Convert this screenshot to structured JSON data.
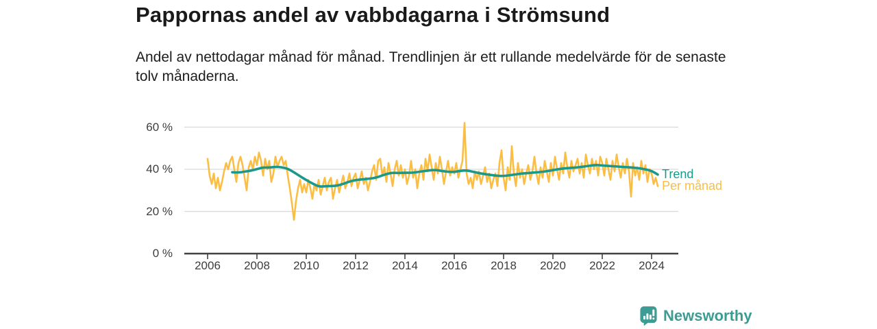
{
  "header": {
    "title": "Pappornas andel av vabbdagarna i Strömsund",
    "subtitle": "Andel av nettodagar månad för månad. Trendlinjen är ett rullande medelvärde för de senaste tolv månaderna."
  },
  "chart_data": {
    "type": "line",
    "title": "Pappornas andel av vabbdagarna i Strömsund",
    "subtitle": "Andel av nettodagar månad för månad. Trendlinjen är ett rullande medelvärde för de senaste tolv månaderna.",
    "unit": "%",
    "grid": "horizontal",
    "legend_position": "right-of-line-ends",
    "ylim": [
      0,
      65
    ],
    "xlim": [
      2005.1,
      2025.1
    ],
    "y_tick_values": [
      0,
      20,
      40,
      60
    ],
    "y_tick_labels": [
      "0 %",
      "20 %",
      "40 %",
      "60 %"
    ],
    "x_ticks": [
      2006,
      2008,
      2010,
      2012,
      2014,
      2016,
      2018,
      2020,
      2022,
      2024
    ],
    "series": [
      {
        "name": "Per månad",
        "color": "#FBBE45",
        "x_start": 2006.0,
        "x_step_months": 1,
        "values": [
          45,
          37,
          33,
          38,
          31,
          36,
          30,
          34,
          39,
          43,
          40,
          44,
          46,
          40,
          34,
          43,
          46,
          42,
          36,
          30,
          41,
          44,
          40,
          46,
          42,
          48,
          44,
          37,
          45,
          40,
          44,
          34,
          38,
          46,
          41,
          44,
          46,
          42,
          44,
          37,
          31,
          24,
          16,
          25,
          31,
          35,
          29,
          33,
          29,
          35,
          31,
          26,
          33,
          30,
          35,
          28,
          32,
          36,
          30,
          34,
          36,
          26,
          31,
          35,
          29,
          33,
          37,
          31,
          34,
          38,
          32,
          36,
          38,
          31,
          35,
          39,
          33,
          36,
          30,
          34,
          39,
          42,
          35,
          44,
          45,
          37,
          41,
          34,
          43,
          38,
          32,
          40,
          44,
          37,
          42,
          36,
          40,
          33,
          37,
          44,
          36,
          40,
          31,
          38,
          42,
          35,
          45,
          39,
          47,
          41,
          35,
          43,
          38,
          46,
          40,
          33,
          39,
          44,
          37,
          41,
          38,
          43,
          36,
          40,
          44,
          62,
          38,
          33,
          36,
          31,
          39,
          35,
          39,
          33,
          37,
          41,
          34,
          38,
          31,
          35,
          38,
          32,
          43,
          49,
          36,
          30,
          41,
          35,
          51,
          38,
          32,
          43,
          36,
          40,
          33,
          38,
          42,
          35,
          39,
          46,
          38,
          33,
          41,
          36,
          44,
          39,
          34,
          43,
          37,
          46,
          40,
          35,
          43,
          38,
          48,
          41,
          36,
          44,
          39,
          42,
          45,
          38,
          43,
          36,
          47,
          42,
          38,
          45,
          40,
          44,
          37,
          46,
          43,
          37,
          45,
          40,
          35,
          44,
          39,
          47,
          41,
          36,
          43,
          38,
          45,
          39,
          27,
          43,
          37,
          41,
          35,
          44,
          38,
          42,
          34,
          40,
          38,
          33,
          36,
          32
        ]
      },
      {
        "name": "Trend",
        "color": "#1A998B",
        "x_start": 2007.0,
        "x_step_months": 3,
        "values": [
          38.6,
          38.4,
          38.9,
          39.3,
          40.1,
          40.9,
          40.8,
          41.2,
          41.0,
          40.3,
          38.6,
          36.7,
          34.9,
          33.3,
          31.8,
          31.9,
          32.1,
          32.2,
          33.1,
          34.2,
          34.9,
          35.2,
          35.5,
          35.8,
          36.7,
          37.8,
          38.4,
          38.2,
          38.4,
          38.3,
          38.7,
          39.1,
          39.5,
          39.7,
          39.2,
          38.8,
          38.7,
          39.3,
          39.5,
          38.9,
          38.2,
          37.7,
          37.3,
          36.9,
          36.8,
          37.2,
          37.6,
          38.0,
          38.2,
          38.5,
          38.7,
          39.1,
          39.6,
          40.1,
          40.5,
          40.7,
          40.9,
          41.3,
          41.7,
          42.1,
          41.8,
          41.6,
          41.4,
          41.2,
          41.0,
          40.8,
          40.5,
          40.0,
          39.3,
          37.5
        ]
      }
    ],
    "colors": {
      "per_manad": "#FBBE45",
      "trend": "#1A998B",
      "gridline": "#D9D9D9",
      "axis": "#414141",
      "tick_text": "#3d3d3d"
    }
  },
  "branding": {
    "logo_text": "Newsworthy",
    "logo_color": "#3C9C93",
    "logo_icon": "bar-chart-speech-bubble-icon"
  }
}
